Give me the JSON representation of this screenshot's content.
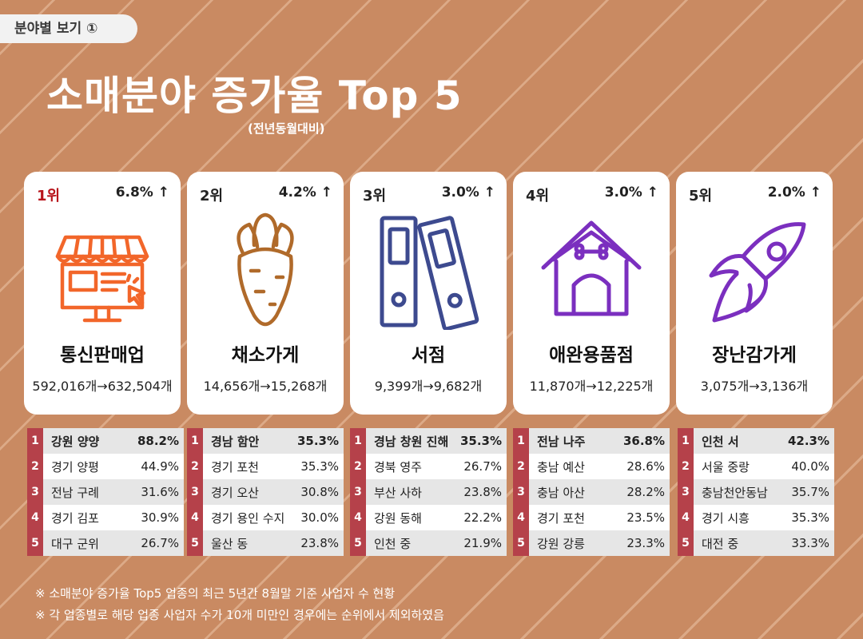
{
  "tag": "분야별 보기 ①",
  "title": "소매분야 증가율 Top 5",
  "subtitle": "(전년동월대비)",
  "cards": [
    {
      "rank": "1위",
      "pct": "6.8% ↑",
      "name": "통신판매업",
      "counts": "592,016개→632,504개",
      "icon": "online-store-icon",
      "color": "#f2662a"
    },
    {
      "rank": "2위",
      "pct": "4.2% ↑",
      "name": "채소가게",
      "counts": "14,656개→15,268개",
      "icon": "carrot-icon",
      "color": "#b06a2a"
    },
    {
      "rank": "3위",
      "pct": "3.0% ↑",
      "name": "서점",
      "counts": "9,399개→9,682개",
      "icon": "binders-icon",
      "color": "#3d4a8f"
    },
    {
      "rank": "4위",
      "pct": "3.0% ↑",
      "name": "애완용품점",
      "counts": "11,870개→12,225개",
      "icon": "doghouse-icon",
      "color": "#7b2fbf"
    },
    {
      "rank": "5위",
      "pct": "2.0% ↑",
      "name": "장난감가게",
      "counts": "3,075개→3,136개",
      "icon": "rocket-icon",
      "color": "#7b2fbf"
    }
  ],
  "tables": [
    [
      {
        "n": "1",
        "region": "강원 양양",
        "value": "88.2%"
      },
      {
        "n": "2",
        "region": "경기 양평",
        "value": "44.9%"
      },
      {
        "n": "3",
        "region": "전남 구례",
        "value": "31.6%"
      },
      {
        "n": "4",
        "region": "경기 김포",
        "value": "30.9%"
      },
      {
        "n": "5",
        "region": "대구 군위",
        "value": "26.7%"
      }
    ],
    [
      {
        "n": "1",
        "region": "경남 함안",
        "value": "35.3%"
      },
      {
        "n": "2",
        "region": "경기 포천",
        "value": "35.3%"
      },
      {
        "n": "3",
        "region": "경기 오산",
        "value": "30.8%"
      },
      {
        "n": "4",
        "region": "경기 용인 수지",
        "value": "30.0%"
      },
      {
        "n": "5",
        "region": "울산 동",
        "value": "23.8%"
      }
    ],
    [
      {
        "n": "1",
        "region": "경남 창원 진해",
        "value": "35.3%"
      },
      {
        "n": "2",
        "region": "경북 영주",
        "value": "26.7%"
      },
      {
        "n": "3",
        "region": "부산 사하",
        "value": "23.8%"
      },
      {
        "n": "4",
        "region": "강원 동해",
        "value": "22.2%"
      },
      {
        "n": "5",
        "region": "인천 중",
        "value": "21.9%"
      }
    ],
    [
      {
        "n": "1",
        "region": "전남 나주",
        "value": "36.8%"
      },
      {
        "n": "2",
        "region": "충남 예산",
        "value": "28.6%"
      },
      {
        "n": "3",
        "region": "충남 아산",
        "value": "28.2%"
      },
      {
        "n": "4",
        "region": "경기 포천",
        "value": "23.5%"
      },
      {
        "n": "5",
        "region": "강원 강릉",
        "value": "23.3%"
      }
    ],
    [
      {
        "n": "1",
        "region": "인천 서",
        "value": "42.3%"
      },
      {
        "n": "2",
        "region": "서울 중랑",
        "value": "40.0%"
      },
      {
        "n": "3",
        "region": "충남천안동남",
        "value": "35.7%"
      },
      {
        "n": "4",
        "region": "경기 시흥",
        "value": "35.3%"
      },
      {
        "n": "5",
        "region": "대전 중",
        "value": "33.3%"
      }
    ]
  ],
  "notes": [
    "※ 소매분야 증가율 Top5 업종의 최근 5년간 8월말 기준 사업자 수 현황",
    "※ 각 업종별로 해당 업종 사업자 수가 10개 미만인 경우에는 순위에서 제외하였음"
  ]
}
